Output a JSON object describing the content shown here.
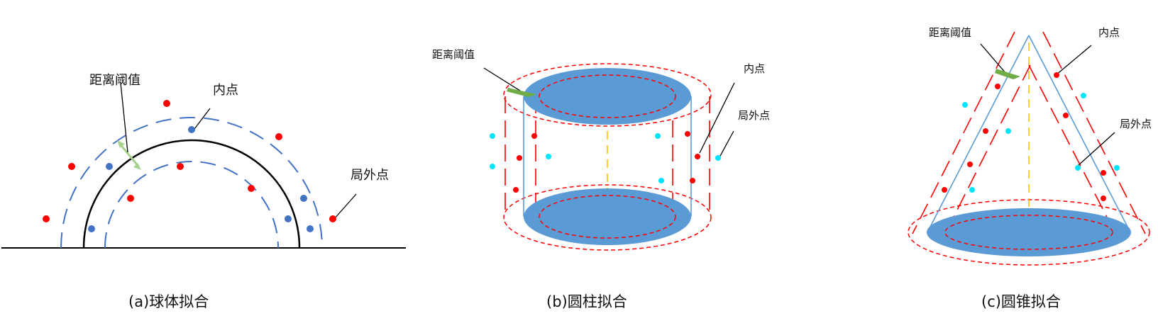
{
  "panels": {
    "sphere": {
      "caption": "(a)球体拟合",
      "distance_label": "距离阈值",
      "inlier_label": "内点",
      "outlier_label": "局外点"
    },
    "cylinder": {
      "caption": "(b)圆柱拟合",
      "distance_label": "距离阈值",
      "inlier_label": "内点",
      "outlier_label": "局外点"
    },
    "cone": {
      "caption": "(c)圆锥拟合",
      "distance_label": "距离阈值",
      "inlier_label": "内点",
      "outlier_label": "局外点"
    }
  },
  "colors": {
    "surface_fill": "#5b9bd5",
    "surface_line": "#5b9bd5",
    "threshold_dash_blue": "#4472c4",
    "threshold_dash_red": "#ff0000",
    "inlier_red": "#ff0000",
    "outlier_cyan": "#00e5ff",
    "axis_yellow": "#ffc000",
    "arrow_green": "#70ad47",
    "arrow_green_light": "#a9d18e",
    "ground_line": "#000000"
  }
}
